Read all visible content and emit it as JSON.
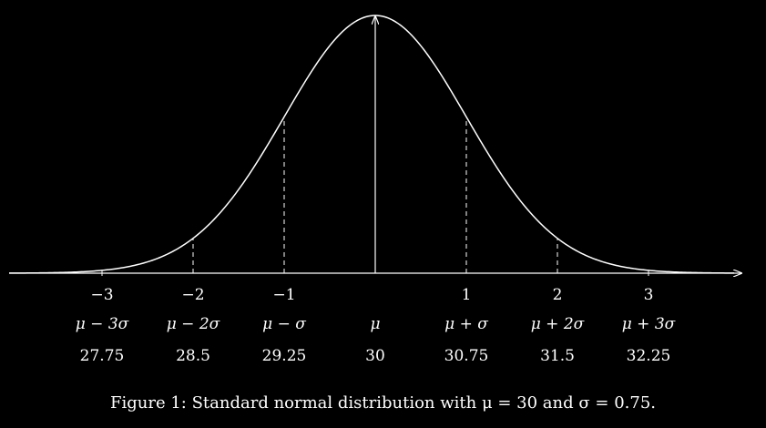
{
  "chart_data": {
    "type": "line",
    "title": "",
    "curve": "standard normal density",
    "mu": 30,
    "sigma": 0.75,
    "xlim": [
      -4,
      4
    ],
    "ticks": [
      {
        "z": "−3",
        "symbol": "μ − 3σ",
        "value": "27.75",
        "dashed": false
      },
      {
        "z": "−2",
        "symbol": "μ − 2σ",
        "value": "28.5",
        "dashed": true
      },
      {
        "z": "−1",
        "symbol": "μ − σ",
        "value": "29.25",
        "dashed": true
      },
      {
        "z": "",
        "symbol": "μ",
        "value": "30",
        "dashed": false
      },
      {
        "z": "1",
        "symbol": "μ + σ",
        "value": "30.75",
        "dashed": true
      },
      {
        "z": "2",
        "symbol": "μ + 2σ",
        "value": "31.5",
        "dashed": true
      },
      {
        "z": "3",
        "symbol": "μ + 3σ",
        "value": "32.25",
        "dashed": false
      }
    ],
    "z_values": [
      -3,
      -2,
      -1,
      0,
      1,
      2,
      3
    ]
  },
  "caption": "Figure 1: Standard normal distribution with μ = 30 and σ = 0.75."
}
